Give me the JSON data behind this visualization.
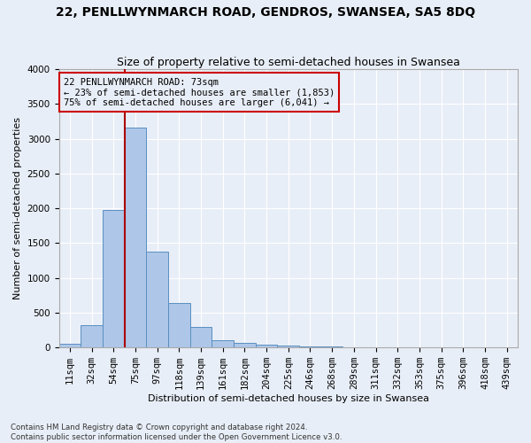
{
  "title": "22, PENLLWYNMARCH ROAD, GENDROS, SWANSEA, SA5 8DQ",
  "subtitle": "Size of property relative to semi-detached houses in Swansea",
  "xlabel": "Distribution of semi-detached houses by size in Swansea",
  "ylabel": "Number of semi-detached properties",
  "footer_line1": "Contains HM Land Registry data © Crown copyright and database right 2024.",
  "footer_line2": "Contains public sector information licensed under the Open Government Licence v3.0.",
  "bin_labels": [
    "11sqm",
    "32sqm",
    "54sqm",
    "75sqm",
    "97sqm",
    "118sqm",
    "139sqm",
    "161sqm",
    "182sqm",
    "204sqm",
    "225sqm",
    "246sqm",
    "268sqm",
    "289sqm",
    "311sqm",
    "332sqm",
    "353sqm",
    "375sqm",
    "396sqm",
    "418sqm",
    "439sqm"
  ],
  "bar_heights": [
    50,
    320,
    1980,
    3160,
    1380,
    640,
    300,
    110,
    65,
    45,
    25,
    15,
    10,
    5,
    2,
    1,
    1,
    0,
    0,
    0,
    0
  ],
  "bar_color": "#aec6e8",
  "bar_edge_color": "#5a8fc2",
  "background_color": "#e8eef7",
  "grid_color": "#ffffff",
  "property_line_label": "73sqm",
  "annotation_text_line1": "22 PENLLWYNMARCH ROAD: 73sqm",
  "annotation_text_line2": "← 23% of semi-detached houses are smaller (1,853)",
  "annotation_text_line3": "75% of semi-detached houses are larger (6,041) →",
  "annotation_box_color": "#cc0000",
  "property_line_color": "#aa0000",
  "property_line_bin_index": 3,
  "ylim": [
    0,
    4000
  ],
  "n_bins": 21,
  "title_fontsize": 10,
  "subtitle_fontsize": 9,
  "label_fontsize": 8,
  "tick_fontsize": 7.5,
  "annotation_fontsize": 7.5
}
